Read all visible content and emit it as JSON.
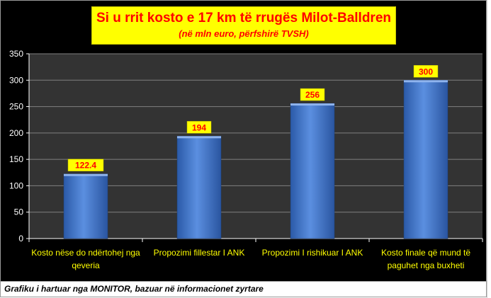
{
  "chart_data": {
    "type": "bar",
    "title": "Si u rrit kosto  e 17 km të rrugës Milot-Balldren",
    "subtitle": "(në mln euro, përfshirë TVSH)",
    "categories": [
      [
        "Kosto nëse do ndërtohej nga",
        "qeveria"
      ],
      [
        "Propozimi fillestar I ANK"
      ],
      [
        "Propozimi I rishikuar I ANK"
      ],
      [
        "Kosto finale që mund të",
        "paguhet nga buxheti"
      ]
    ],
    "values": [
      122.4,
      194,
      256,
      300
    ],
    "data_labels": [
      "122.4",
      "194",
      "256",
      "300"
    ],
    "ylim": [
      0,
      350
    ],
    "yticks": [
      0,
      50,
      100,
      150,
      200,
      250,
      300,
      350
    ],
    "grid": true,
    "colors": {
      "background": "#000000",
      "plot_area": "#333333",
      "gridline": "#808080",
      "bar": "#3a6fc4",
      "label_bg": "#ffff00",
      "label_text": "#ff0000",
      "category_text": "#ffff00",
      "tick_text": "#ffffff"
    }
  },
  "footer": {
    "note": "Grafiku i hartuar nga MONITOR, bazuar në informacionet zyrtare"
  }
}
